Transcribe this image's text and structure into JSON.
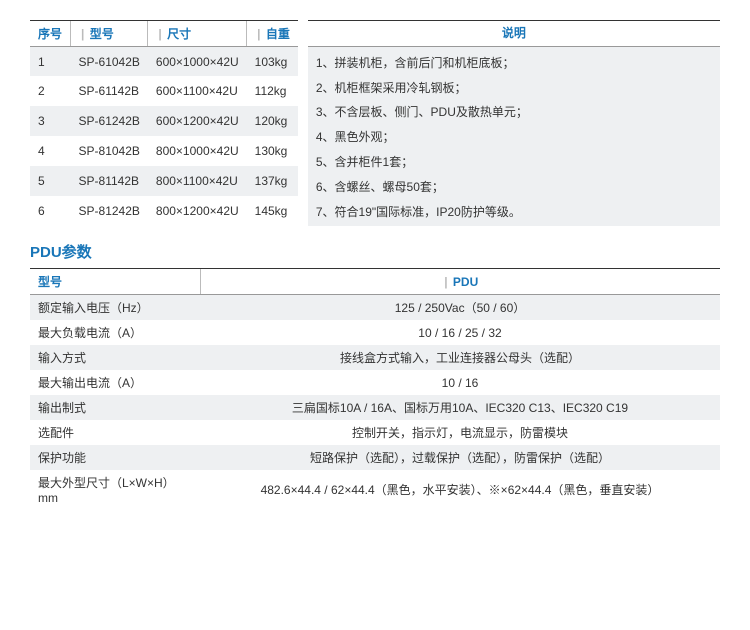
{
  "colors": {
    "header_text": "#1976b8",
    "row_alt_bg": "#eef0f2",
    "body_text": "#333333",
    "rule_dark": "#333333",
    "rule_light": "#999999"
  },
  "typography": {
    "body_fontsize_pt": 9,
    "title_fontsize_pt": 11
  },
  "spec_table": {
    "type": "table",
    "columns": [
      "序号",
      "型号",
      "尺寸",
      "自重"
    ],
    "rows": [
      [
        "1",
        "SP-61042B",
        "600×1000×42U",
        "103kg"
      ],
      [
        "2",
        "SP-61142B",
        "600×1100×42U",
        "112kg"
      ],
      [
        "3",
        "SP-61242B",
        "600×1200×42U",
        "120kg"
      ],
      [
        "4",
        "SP-81042B",
        "800×1000×42U",
        "130kg"
      ],
      [
        "5",
        "SP-81142B",
        "800×1100×42U",
        "137kg"
      ],
      [
        "6",
        "SP-81242B",
        "800×1200×42U",
        "145kg"
      ]
    ]
  },
  "description": {
    "header": "说明",
    "items": [
      "1、拼装机柜，含前后门和机柜底板；",
      "2、机柜框架采用冷轧钢板；",
      "3、不含层板、侧门、PDU及散热单元；",
      "4、黑色外观；",
      "5、含并柜件1套；",
      "6、含螺丝、螺母50套；",
      "7、符合19\"国际标准，IP20防护等级。"
    ]
  },
  "pdu_section": {
    "title": "PDU参数",
    "type": "table",
    "columns": [
      "型号",
      "PDU"
    ],
    "rows": [
      {
        "label": "额定输入电压（Hz）",
        "value": "125 / 250Vac（50 / 60）"
      },
      {
        "label": "最大负载电流（A）",
        "value": "10 / 16 / 25 / 32"
      },
      {
        "label": "输入方式",
        "value": "接线盒方式输入，工业连接器公母头（选配）"
      },
      {
        "label": "最大输出电流（A）",
        "value": "10 / 16"
      },
      {
        "label": "输出制式",
        "value": "三扁国标10A / 16A、国标万用10A、IEC320 C13、IEC320 C19"
      },
      {
        "label": "选配件",
        "value": "控制开关，指示灯，电流显示，防雷模块"
      },
      {
        "label": "保护功能",
        "value": "短路保护（选配），过载保护（选配），防雷保护（选配）"
      },
      {
        "label": "最大外型尺寸（L×W×H）mm",
        "value": "482.6×44.4 / 62×44.4（黑色，水平安装）、※×62×44.4（黑色，垂直安装）"
      }
    ]
  }
}
